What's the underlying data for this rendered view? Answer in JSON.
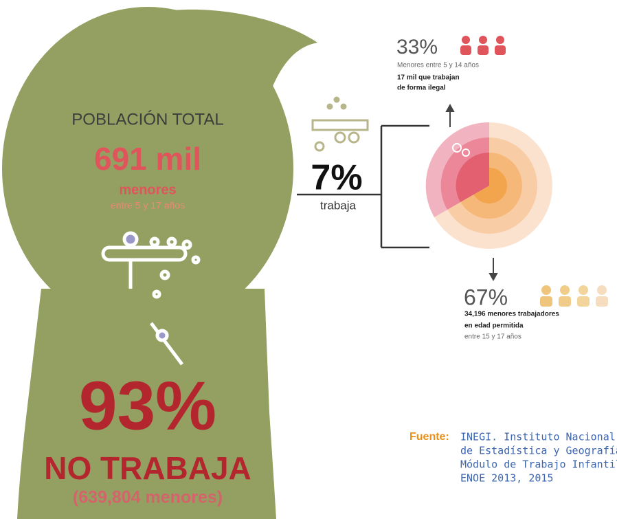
{
  "silhouette": {
    "population_label": "POBLACIÓN TOTAL",
    "population_value": "691 mil",
    "population_unit": "menores",
    "population_range": "entre 5 y 17 años",
    "not_working_percent": "93%",
    "not_working_label": "NO TRABAJA",
    "not_working_count": "(639,804 menores)"
  },
  "working": {
    "percent": "7%",
    "label": "trabaja"
  },
  "illegal": {
    "percent": "33%",
    "lines": [
      "Menores entre 5 y 14 años",
      "17 mil que trabajan",
      "de forma ilegal"
    ]
  },
  "legal": {
    "percent": "67%",
    "lines": [
      "34,196 menores trabajadores",
      "en edad permitida",
      "entre 15 y 17 años"
    ]
  },
  "source": {
    "label": "Fuente:",
    "lines": [
      "INEGI. Instituto Nacional",
      "de Estadística y Geografía,",
      "Módulo de Trabajo Infantil,",
      "ENOE 2013, 2015"
    ]
  }
}
